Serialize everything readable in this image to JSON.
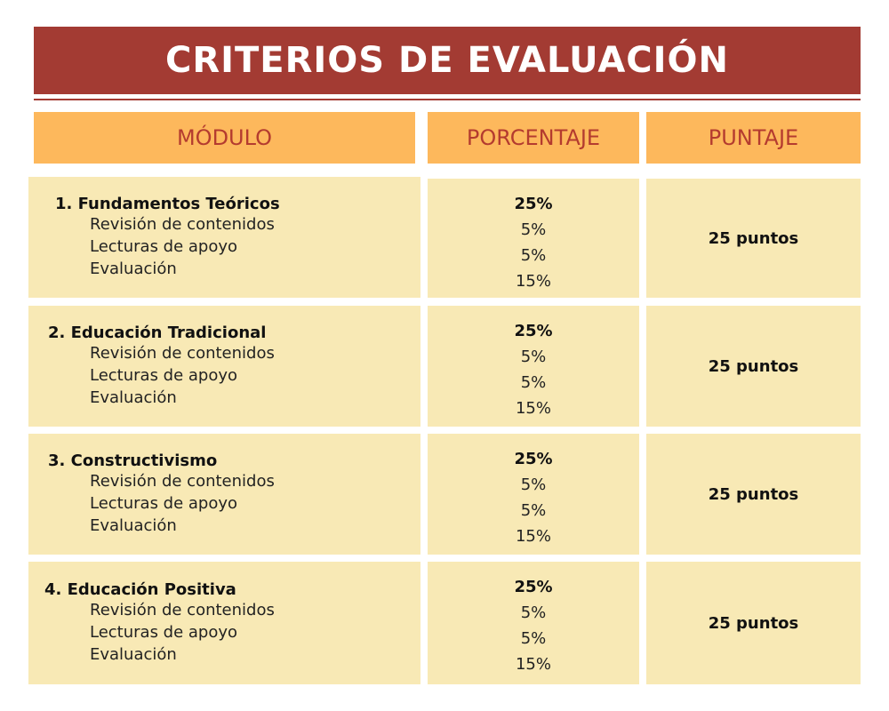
{
  "title": "CRITERIOS DE EVALUACIÓN",
  "headers": {
    "module": "MÓDULO",
    "percentage": "PORCENTAJE",
    "score": "PUNTAJE"
  },
  "rows": [
    {
      "module": "1.  Fundamentos Teóricos",
      "items": [
        "Revisión de contenidos",
        "Lecturas de apoyo",
        "Evaluación"
      ],
      "total_pct": "25%",
      "item_pcts": [
        "5%",
        "5%",
        "15%"
      ],
      "points": "25 puntos"
    },
    {
      "module": "2. Educación Tradicional",
      "items": [
        "Revisión de contenidos",
        "Lecturas de apoyo",
        "Evaluación"
      ],
      "total_pct": "25%",
      "item_pcts": [
        "5%",
        "5%",
        "15%"
      ],
      "points": "25 puntos"
    },
    {
      "module": "3. Constructivismo",
      "items": [
        "Revisión de contenidos",
        "Lecturas de apoyo",
        "Evaluación"
      ],
      "total_pct": "25%",
      "item_pcts": [
        "5%",
        "5%",
        "15%"
      ],
      "points": "25 puntos"
    },
    {
      "module": "4. Educación Positiva",
      "items": [
        "Revisión de contenidos",
        "Lecturas de apoyo",
        "Evaluación"
      ],
      "total_pct": "25%",
      "item_pcts": [
        "5%",
        "5%",
        "15%"
      ],
      "points": "25 puntos"
    }
  ]
}
